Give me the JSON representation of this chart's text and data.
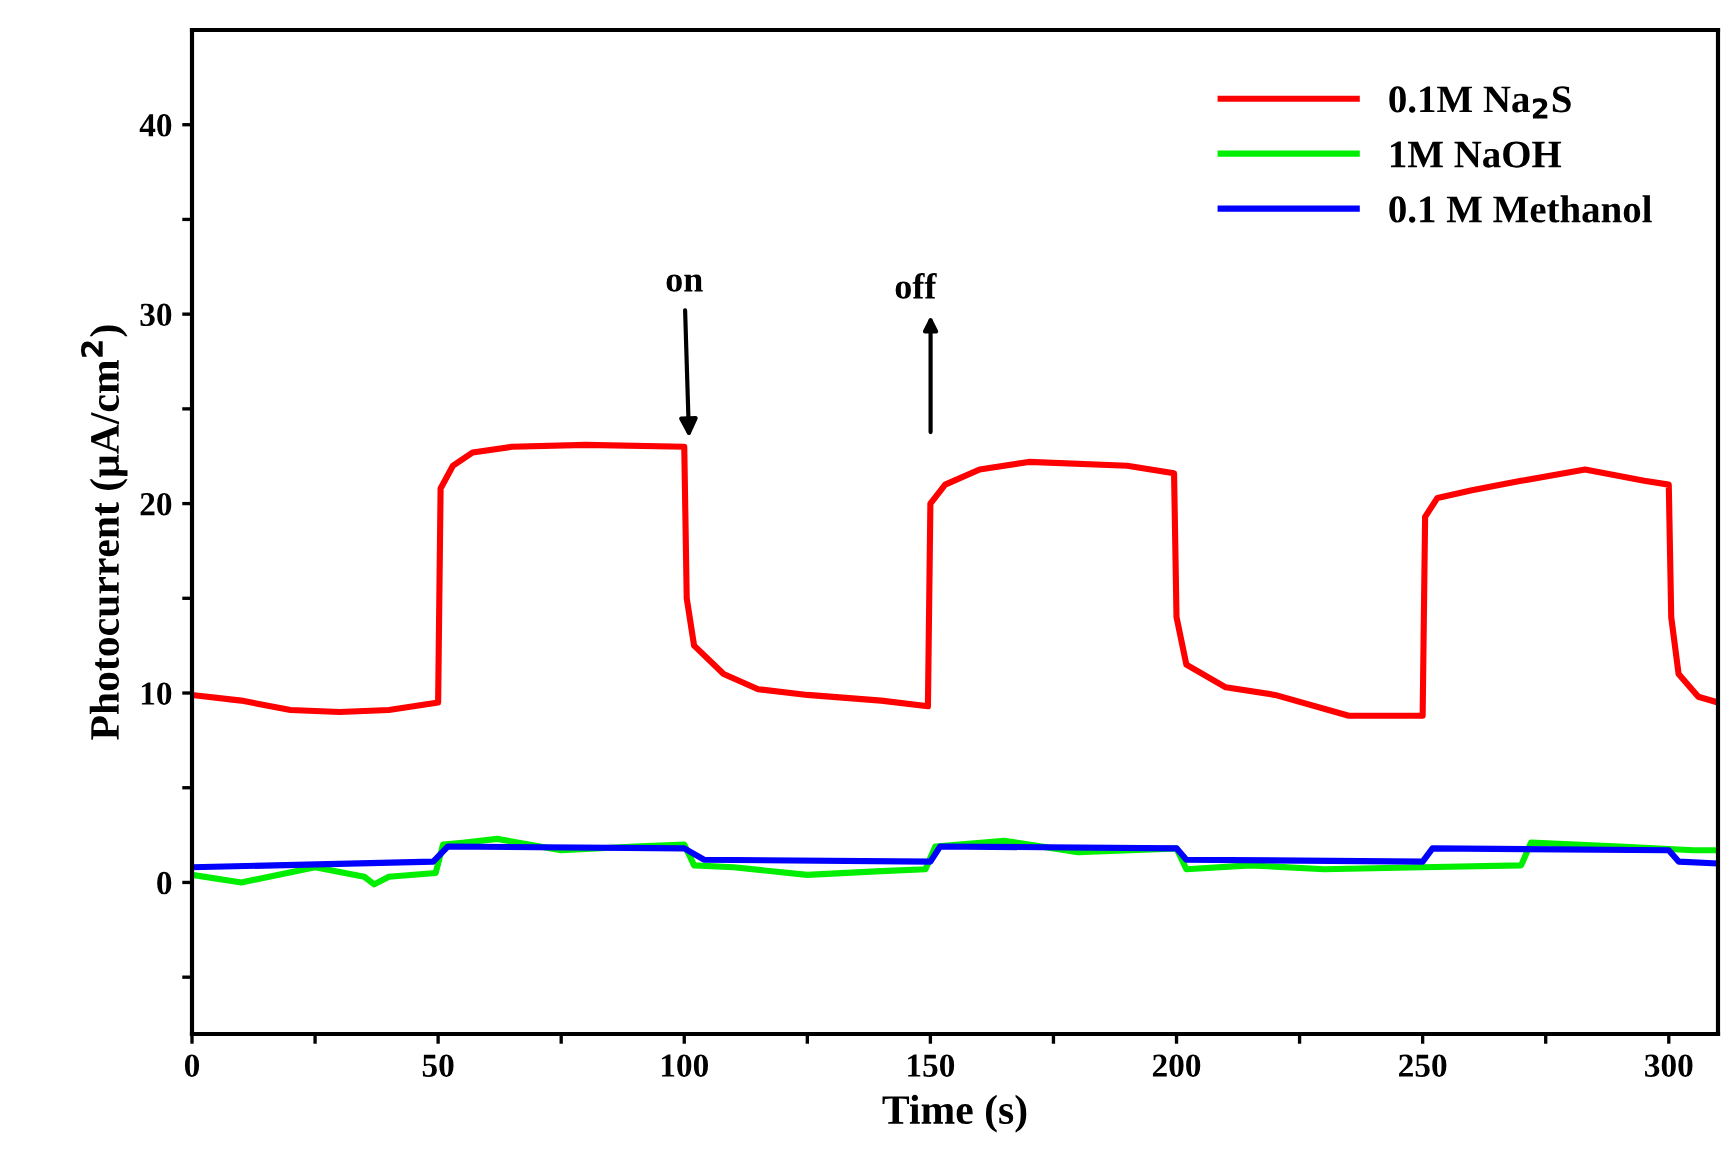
{
  "chart_data": {
    "type": "line",
    "xlabel": "Time (s)",
    "ylabel": "Photocurrent (μA/cm$^{2}$)",
    "xlim": [
      0,
      310
    ],
    "ylim": [
      -8,
      45
    ],
    "xticks": [
      0,
      {
        "value": 25,
        "label": null
      },
      50,
      {
        "value": 75,
        "label": null
      },
      100,
      {
        "value": 125,
        "label": null
      },
      150,
      {
        "value": 175,
        "label": null
      },
      200,
      {
        "value": 225,
        "label": null
      },
      250,
      {
        "value": 275,
        "label": null
      },
      300
    ],
    "yticks": [
      {
        "value": -5,
        "label": null
      },
      0,
      {
        "value": 5,
        "label": null
      },
      10,
      {
        "value": 15,
        "label": null
      },
      20,
      {
        "value": 25,
        "label": null
      },
      30,
      {
        "value": 35,
        "label": null
      },
      40
    ],
    "grid": false,
    "legend": "top right",
    "marker": "none",
    "line_style": "solid",
    "annotations": [
      {
        "text": "on",
        "x": 101,
        "y": 23.2
      },
      "off"
    ],
    "series": [
      {
        "name": "0.1M Na$_{2}$S",
        "color": "#ff0000",
        "x": [
          0,
          10,
          20,
          30,
          40,
          50,
          50.5,
          53,
          57,
          65,
          80,
          100,
          100.5,
          102,
          108,
          115,
          125,
          140,
          149.5,
          150,
          153,
          160,
          170,
          190,
          199.5,
          200,
          202,
          210,
          220,
          235,
          250,
          250.5,
          253,
          260,
          270,
          283,
          295,
          300,
          300.5,
          302,
          306,
          310
        ],
        "values": [
          9.9,
          9.6,
          9.1,
          9.0,
          9.1,
          9.5,
          20.8,
          22.0,
          22.7,
          23.0,
          23.1,
          23.0,
          15.0,
          12.5,
          11.0,
          10.2,
          9.9,
          9.6,
          9.3,
          20.0,
          21.0,
          21.8,
          22.2,
          22.0,
          21.6,
          14.0,
          11.5,
          10.3,
          9.9,
          8.8,
          8.8,
          19.3,
          20.3,
          20.7,
          21.2,
          21.8,
          21.2,
          21.0,
          14.0,
          11.0,
          9.8,
          9.5
        ]
      },
      {
        "name": "1M NaOH",
        "color": "#00ee00",
        "x": [
          0,
          10,
          25,
          35,
          37,
          40,
          49.5,
          51,
          55,
          62,
          75,
          90,
          100,
          102,
          110,
          125,
          140,
          149,
          151,
          165,
          180,
          200,
          202,
          215,
          230,
          250,
          270,
          272,
          290,
          305,
          310
        ],
        "values": [
          0.4,
          0.0,
          0.8,
          0.3,
          -0.1,
          0.3,
          0.5,
          2.0,
          2.1,
          2.3,
          1.7,
          1.9,
          2.0,
          0.9,
          0.8,
          0.4,
          0.6,
          0.7,
          1.9,
          2.2,
          1.6,
          1.8,
          0.7,
          0.9,
          0.7,
          0.8,
          0.9,
          2.1,
          1.9,
          1.7,
          1.7
        ]
      },
      {
        "name": "0.1 M Methanol",
        "color": "#0000ff",
        "x": [
          0,
          49,
          52,
          100,
          104,
          150,
          152,
          200,
          202,
          250,
          252,
          300,
          302,
          310
        ],
        "values": [
          0.8,
          1.1,
          1.9,
          1.8,
          1.2,
          1.1,
          1.9,
          1.8,
          1.2,
          1.1,
          1.8,
          1.7,
          1.1,
          1.0
        ]
      }
    ]
  }
}
